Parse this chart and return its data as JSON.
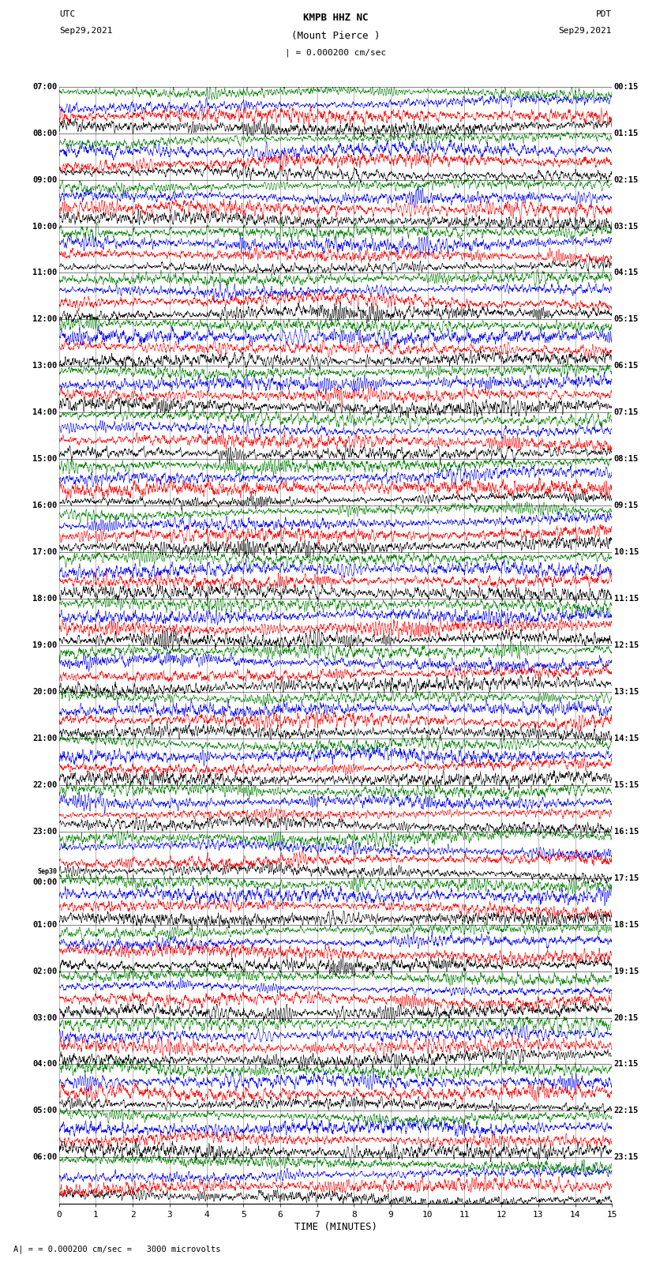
{
  "title_line1": "KMPB HHZ NC",
  "title_line2": "(Mount Pierce )",
  "title_scale": "| = 0.000200 cm/sec",
  "label_left_top": "UTC",
  "label_left_date": "Sep29,2021",
  "label_right_top": "PDT",
  "label_right_date": "Sep29,2021",
  "xlabel": "TIME (MINUTES)",
  "scale_note": "= 0.000200 cm/sec =   3000 microvolts",
  "left_times": [
    "07:00",
    "08:00",
    "09:00",
    "10:00",
    "11:00",
    "12:00",
    "13:00",
    "14:00",
    "15:00",
    "16:00",
    "17:00",
    "18:00",
    "19:00",
    "20:00",
    "21:00",
    "22:00",
    "23:00",
    "Sep30\n00:00",
    "01:00",
    "02:00",
    "03:00",
    "04:00",
    "05:00",
    "06:00"
  ],
  "right_times": [
    "00:15",
    "01:15",
    "02:15",
    "03:15",
    "04:15",
    "05:15",
    "06:15",
    "07:15",
    "08:15",
    "09:15",
    "10:15",
    "11:15",
    "12:15",
    "13:15",
    "14:15",
    "15:15",
    "16:15",
    "17:15",
    "18:15",
    "19:15",
    "20:15",
    "21:15",
    "22:15",
    "23:15"
  ],
  "n_major_rows": 24,
  "sub_traces_per_row": 4,
  "minutes_per_trace": 15,
  "trace_colors": [
    "black",
    "red",
    "blue",
    "green"
  ],
  "bg_color": "white",
  "fig_width": 8.5,
  "fig_height": 16.13,
  "dpi": 100,
  "samples_per_minute": 200
}
